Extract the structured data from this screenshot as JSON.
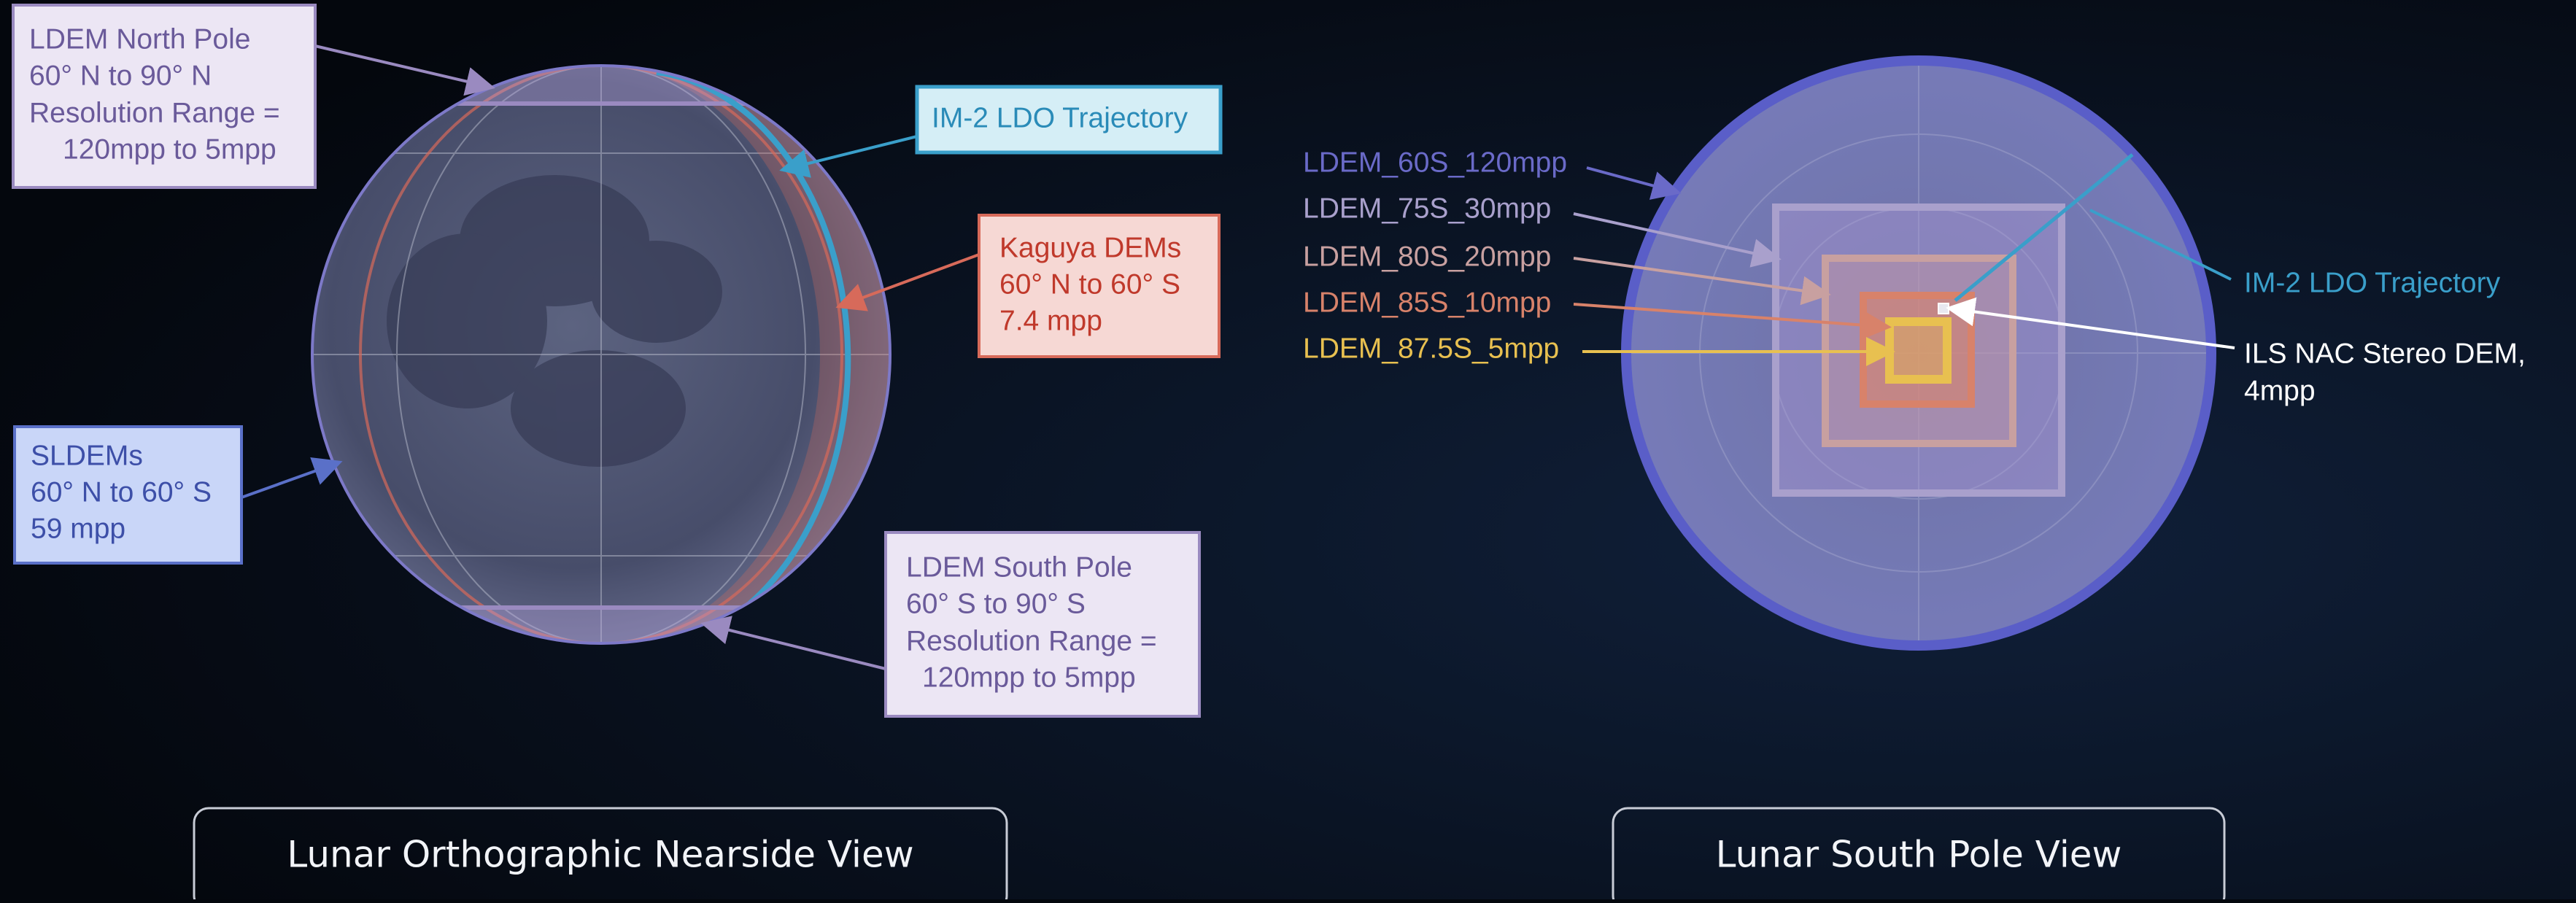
{
  "left_view": {
    "title": "Lunar Orthographic Nearside View",
    "callouts": [
      {
        "lines": [
          "LDEM North Pole",
          "60° N to 90° N",
          "Resolution Range =",
          "120mpp to 5mpp"
        ]
      },
      {
        "lines": [
          "IM-2 LDO Trajectory"
        ]
      },
      {
        "lines": [
          "Kaguya DEMs",
          "60° N to 60° S",
          "7.4 mpp"
        ]
      },
      {
        "lines": [
          "SLDEMs",
          "60° N to 60° S",
          "59 mpp"
        ]
      },
      {
        "lines": [
          "LDEM South Pole",
          "60° S to 90° S",
          "Resolution Range =",
          "120mpp to 5mpp"
        ]
      }
    ]
  },
  "right_view": {
    "title": "Lunar South Pole View",
    "labels": [
      "LDEM_60S_120mpp",
      "LDEM_75S_30mpp",
      "LDEM_80S_20mpp",
      "LDEM_85S_10mpp",
      "LDEM_87.5S_5mpp",
      "IM-2 LDO Trajectory"
    ],
    "ils_label": [
      "ILS NAC Stereo DEM,",
      "4mpp"
    ]
  }
}
